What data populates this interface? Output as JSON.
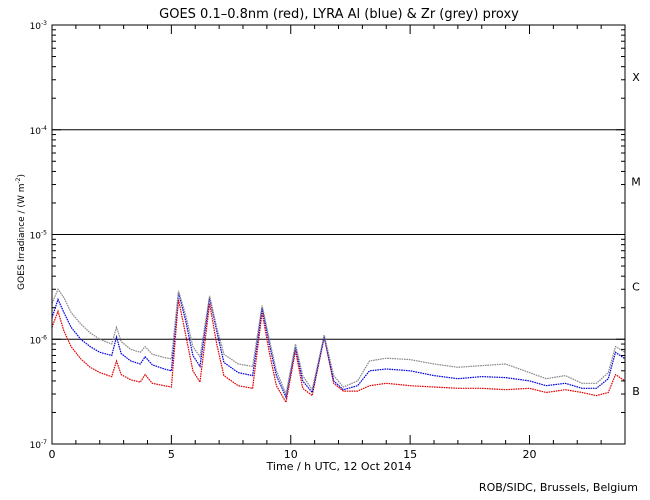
{
  "chart_data": {
    "type": "line",
    "title": "GOES 0.1–0.8nm (red), LYRA Al (blue) & Zr (grey) proxy",
    "xlabel": "Time / h UTC, 12 Oct 2014",
    "ylabel_main": "GOES Irradiance / (W m",
    "ylabel_exp": "-2",
    "ylabel_close": ")",
    "xlim": [
      0,
      24
    ],
    "ylim": [
      1e-07,
      0.001
    ],
    "yscale": "log",
    "x_ticks": [
      0,
      5,
      10,
      15,
      20
    ],
    "x_tick_labels": [
      "0",
      "5",
      "10",
      "15",
      "20"
    ],
    "y_ticks": [
      1e-07,
      1e-06,
      1e-05,
      0.0001,
      0.001
    ],
    "y_tick_base": "10",
    "y_tick_exps": [
      "-7",
      "-6",
      "-5",
      "-4",
      "-3"
    ],
    "flare_class_lines": [
      1e-06,
      1e-05,
      0.0001
    ],
    "flare_classes": [
      {
        "label": "B",
        "y": 3.2e-07
      },
      {
        "label": "C",
        "y": 3.2e-06
      },
      {
        "label": "M",
        "y": 3.2e-05
      },
      {
        "label": "X",
        "y": 0.00032
      }
    ],
    "series": [
      {
        "name": "GOES 0.1-0.8nm",
        "color": "#e00000",
        "points": [
          [
            0,
            1.3e-06
          ],
          [
            0.25,
            1.85e-06
          ],
          [
            0.5,
            1.2e-06
          ],
          [
            0.8,
            8.5e-07
          ],
          [
            1.2,
            6.5e-07
          ],
          [
            1.6,
            5.4e-07
          ],
          [
            2.0,
            4.8e-07
          ],
          [
            2.5,
            4.4e-07
          ],
          [
            2.7,
            6.2e-07
          ],
          [
            2.9,
            4.6e-07
          ],
          [
            3.3,
            4.1e-07
          ],
          [
            3.7,
            3.9e-07
          ],
          [
            3.9,
            4.6e-07
          ],
          [
            4.2,
            3.8e-07
          ],
          [
            4.7,
            3.6e-07
          ],
          [
            5.0,
            3.5e-07
          ],
          [
            5.3,
            2.4e-06
          ],
          [
            5.6,
            1.1e-06
          ],
          [
            5.9,
            5e-07
          ],
          [
            6.2,
            3.9e-07
          ],
          [
            6.6,
            2.2e-06
          ],
          [
            6.9,
            9e-07
          ],
          [
            7.2,
            4.5e-07
          ],
          [
            7.8,
            3.6e-07
          ],
          [
            8.4,
            3.4e-07
          ],
          [
            8.8,
            1.8e-06
          ],
          [
            9.1,
            7.5e-07
          ],
          [
            9.4,
            3.6e-07
          ],
          [
            9.8,
            2.5e-07
          ],
          [
            10.2,
            7.8e-07
          ],
          [
            10.5,
            3.4e-07
          ],
          [
            10.9,
            2.9e-07
          ],
          [
            11.4,
            1.05e-06
          ],
          [
            11.8,
            3.8e-07
          ],
          [
            12.2,
            3.2e-07
          ],
          [
            12.8,
            3.2e-07
          ],
          [
            13.3,
            3.6e-07
          ],
          [
            14,
            3.8e-07
          ],
          [
            15,
            3.6e-07
          ],
          [
            16,
            3.5e-07
          ],
          [
            17,
            3.4e-07
          ],
          [
            18,
            3.4e-07
          ],
          [
            19,
            3.3e-07
          ],
          [
            20,
            3.4e-07
          ],
          [
            20.7,
            3.1e-07
          ],
          [
            21.5,
            3.3e-07
          ],
          [
            22.2,
            3.1e-07
          ],
          [
            22.8,
            2.9e-07
          ],
          [
            23.3,
            3.1e-07
          ],
          [
            23.6,
            4.6e-07
          ],
          [
            24,
            4e-07
          ]
        ]
      },
      {
        "name": "LYRA Al proxy",
        "color": "#0000dd",
        "points": [
          [
            0,
            1.6e-06
          ],
          [
            0.25,
            2.4e-06
          ],
          [
            0.5,
            1.8e-06
          ],
          [
            0.8,
            1.3e-06
          ],
          [
            1.2,
            1e-06
          ],
          [
            1.6,
            8.5e-07
          ],
          [
            2.0,
            7.5e-07
          ],
          [
            2.5,
            7e-07
          ],
          [
            2.7,
            1.05e-06
          ],
          [
            2.9,
            7.3e-07
          ],
          [
            3.3,
            6.2e-07
          ],
          [
            3.7,
            5.8e-07
          ],
          [
            3.9,
            6.8e-07
          ],
          [
            4.2,
            5.7e-07
          ],
          [
            4.7,
            5.2e-07
          ],
          [
            5.0,
            5e-07
          ],
          [
            5.3,
            2.8e-06
          ],
          [
            5.6,
            1.5e-06
          ],
          [
            5.9,
            7e-07
          ],
          [
            6.2,
            5.5e-07
          ],
          [
            6.6,
            2.5e-06
          ],
          [
            6.9,
            1.2e-06
          ],
          [
            7.2,
            6e-07
          ],
          [
            7.8,
            4.8e-07
          ],
          [
            8.4,
            4.5e-07
          ],
          [
            8.8,
            2e-06
          ],
          [
            9.1,
            9e-07
          ],
          [
            9.4,
            4.5e-07
          ],
          [
            9.8,
            2.8e-07
          ],
          [
            10.2,
            8.5e-07
          ],
          [
            10.5,
            4e-07
          ],
          [
            10.9,
            3.1e-07
          ],
          [
            11.4,
            1.05e-06
          ],
          [
            11.8,
            4e-07
          ],
          [
            12.2,
            3.3e-07
          ],
          [
            12.8,
            3.6e-07
          ],
          [
            13.3,
            5e-07
          ],
          [
            14,
            5.2e-07
          ],
          [
            15,
            5e-07
          ],
          [
            16,
            4.5e-07
          ],
          [
            17,
            4.2e-07
          ],
          [
            18,
            4.4e-07
          ],
          [
            19,
            4.3e-07
          ],
          [
            20,
            4e-07
          ],
          [
            20.7,
            3.6e-07
          ],
          [
            21.5,
            3.8e-07
          ],
          [
            22.2,
            3.4e-07
          ],
          [
            22.8,
            3.4e-07
          ],
          [
            23.3,
            4.2e-07
          ],
          [
            23.6,
            7.5e-07
          ],
          [
            24,
            6.5e-07
          ]
        ]
      },
      {
        "name": "LYRA Zr proxy",
        "color": "#888888",
        "points": [
          [
            0,
            2.2e-06
          ],
          [
            0.25,
            3e-06
          ],
          [
            0.5,
            2.5e-06
          ],
          [
            0.8,
            1.8e-06
          ],
          [
            1.2,
            1.4e-06
          ],
          [
            1.6,
            1.15e-06
          ],
          [
            2.0,
            1e-06
          ],
          [
            2.5,
            9e-07
          ],
          [
            2.7,
            1.3e-06
          ],
          [
            2.9,
            9.5e-07
          ],
          [
            3.3,
            8e-07
          ],
          [
            3.7,
            7.5e-07
          ],
          [
            3.9,
            8.5e-07
          ],
          [
            4.2,
            7.2e-07
          ],
          [
            4.7,
            6.7e-07
          ],
          [
            5.0,
            6.5e-07
          ],
          [
            5.3,
            2.9e-06
          ],
          [
            5.6,
            1.7e-06
          ],
          [
            5.9,
            8.5e-07
          ],
          [
            6.2,
            6.8e-07
          ],
          [
            6.6,
            2.6e-06
          ],
          [
            6.9,
            1.3e-06
          ],
          [
            7.2,
            7.2e-07
          ],
          [
            7.8,
            5.8e-07
          ],
          [
            8.4,
            5.5e-07
          ],
          [
            8.8,
            2.1e-06
          ],
          [
            9.1,
            1e-06
          ],
          [
            9.4,
            5e-07
          ],
          [
            9.8,
            3e-07
          ],
          [
            10.2,
            9e-07
          ],
          [
            10.5,
            4.5e-07
          ],
          [
            10.9,
            3.3e-07
          ],
          [
            11.4,
            1.1e-06
          ],
          [
            11.8,
            4.5e-07
          ],
          [
            12.2,
            3.5e-07
          ],
          [
            12.8,
            4e-07
          ],
          [
            13.3,
            6.2e-07
          ],
          [
            14,
            6.6e-07
          ],
          [
            15,
            6.4e-07
          ],
          [
            16,
            5.8e-07
          ],
          [
            17,
            5.4e-07
          ],
          [
            18,
            5.6e-07
          ],
          [
            19,
            5.8e-07
          ],
          [
            20,
            4.8e-07
          ],
          [
            20.7,
            4.2e-07
          ],
          [
            21.5,
            4.5e-07
          ],
          [
            22.2,
            3.8e-07
          ],
          [
            22.8,
            3.8e-07
          ],
          [
            23.3,
            4.8e-07
          ],
          [
            23.6,
            8.5e-07
          ],
          [
            24,
            7.5e-07
          ]
        ]
      }
    ]
  },
  "footer": {
    "credit": "ROB/SIDC, Brussels, Belgium"
  }
}
